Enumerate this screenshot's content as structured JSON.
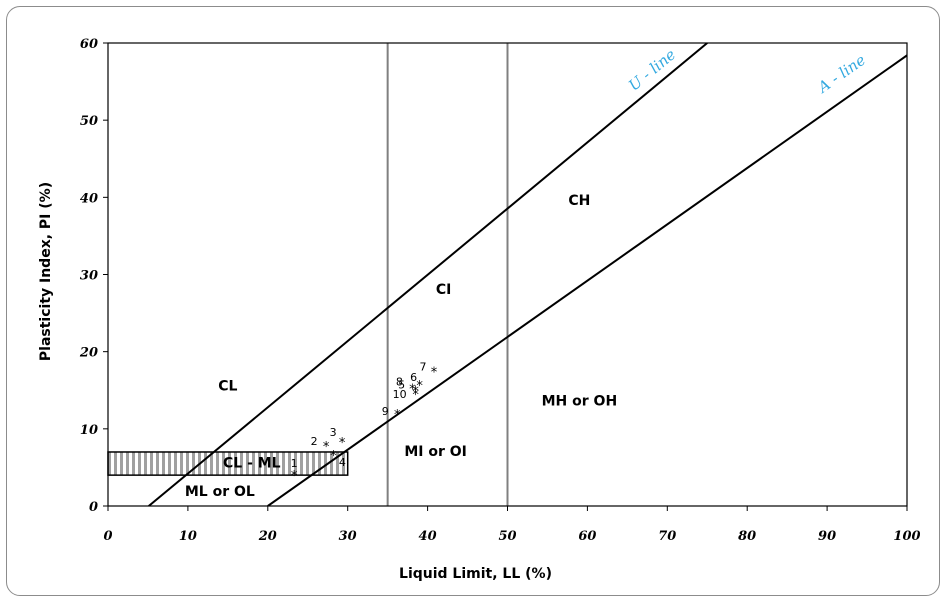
{
  "chart_data": {
    "type": "scatter",
    "xlabel": "Liquid Limit, LL (%)",
    "ylabel": "Plasticity Index, PI (%)",
    "xlim": [
      0,
      100
    ],
    "ylim": [
      0,
      60
    ],
    "x_ticks": [
      "0",
      "10",
      "20",
      "30",
      "40",
      "50",
      "60",
      "70",
      "80",
      "90",
      "100"
    ],
    "y_ticks": [
      "0",
      "10",
      "20",
      "30",
      "40",
      "50",
      "60"
    ],
    "grid": false,
    "points": [
      {
        "label": "1",
        "x": 23.3,
        "y": 4.0
      },
      {
        "label": "2",
        "x": 27.3,
        "y": 7.8
      },
      {
        "label": "3",
        "x": 29.3,
        "y": 8.3
      },
      {
        "label": "4",
        "x": 28.2,
        "y": 6.6
      },
      {
        "label": "5",
        "x": 38.5,
        "y": 15.0
      },
      {
        "label": "6",
        "x": 39.0,
        "y": 15.7
      },
      {
        "label": "7",
        "x": 40.8,
        "y": 17.4
      },
      {
        "label": "8",
        "x": 38.1,
        "y": 15.2
      },
      {
        "label": "9",
        "x": 36.2,
        "y": 11.9
      },
      {
        "label": "10",
        "x": 38.5,
        "y": 14.5
      }
    ],
    "point_symbol": "*",
    "lines": [
      {
        "name": "U - line",
        "x1": 5.1,
        "y1": 0,
        "x2": 75,
        "y2": 60,
        "color": "#000000"
      },
      {
        "name": "A - line",
        "x1": 20,
        "y1": 0,
        "x2": 100,
        "y2": 58.4,
        "color": "#000000"
      }
    ],
    "vertical_lines": [
      35,
      50
    ],
    "hatched_band": {
      "ylim": [
        4,
        7
      ],
      "xlim": [
        0,
        30
      ]
    },
    "zones": [
      {
        "label": "CL",
        "x": 15,
        "y": 15
      },
      {
        "label": "CI",
        "x": 42,
        "y": 27.5
      },
      {
        "label": "CH",
        "x": 59,
        "y": 39
      },
      {
        "label": "MH or OH",
        "x": 59,
        "y": 13
      },
      {
        "label": "MI or OI",
        "x": 41,
        "y": 6.5
      },
      {
        "label": "CL - ML",
        "x": 18,
        "y": 5
      },
      {
        "label": "ML or OL",
        "x": 14,
        "y": 1.3
      }
    ],
    "line_label_color": "#33a9e0"
  }
}
